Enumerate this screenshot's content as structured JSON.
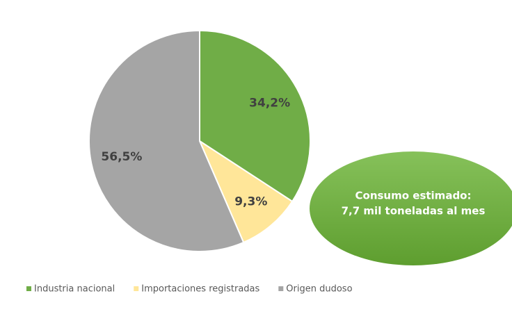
{
  "chart_data": {
    "type": "pie",
    "categories": [
      "Industria nacional",
      "Importaciones registradas",
      "Origen dudoso"
    ],
    "values": [
      34.2,
      9.3,
      56.5
    ],
    "value_labels": [
      "34,2%",
      "9,3%",
      "56,5%"
    ],
    "colors": [
      "#70ad47",
      "#ffe699",
      "#a5a5a5"
    ],
    "legend": "bottom",
    "annotation": [
      "Consumo estimado:",
      "7,7 mil toneladas al mes"
    ]
  }
}
